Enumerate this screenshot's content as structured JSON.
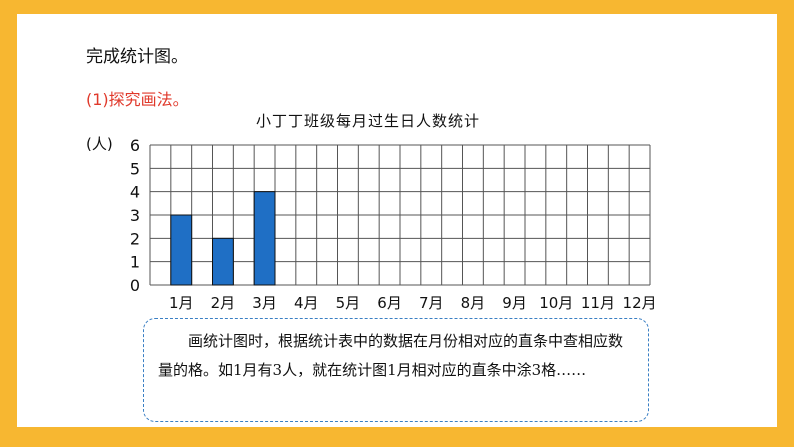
{
  "slide": {
    "heading": "完成统计图。",
    "step": "(1)探究画法。",
    "note": "画统计图时，根据统计表中的数据在月份相对应的直条中查相应数量的格。如1月有3人，就在统计图1月相对应的直条中涂3格……"
  },
  "colors": {
    "border": "#f7b731",
    "bar": "#1f6fc5",
    "step_text": "#e0392b",
    "note_border": "#3a7fc4"
  },
  "chart_data": {
    "type": "bar",
    "title": "小丁丁班级每月过生日人数统计",
    "ylabel": "(人)",
    "xlabel": "",
    "categories": [
      "1月",
      "2月",
      "3月",
      "4月",
      "5月",
      "6月",
      "7月",
      "8月",
      "9月",
      "10月",
      "11月",
      "12月"
    ],
    "values": [
      3,
      2,
      4,
      null,
      null,
      null,
      null,
      null,
      null,
      null,
      null,
      null
    ],
    "ylim": [
      0,
      6
    ],
    "yticks": [
      0,
      1,
      2,
      3,
      4,
      5,
      6
    ],
    "grid": true
  }
}
